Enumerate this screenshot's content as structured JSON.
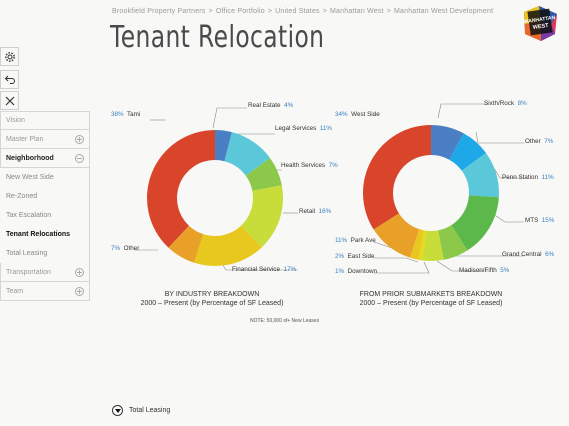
{
  "breadcrumb": [
    "Brookfield Property Partners",
    "Office Portfolio",
    "United States",
    "Manhattan West",
    "Manhattan West Development"
  ],
  "title": "Tenant Relocation",
  "logo_text": "MANHATTAN WEST",
  "toolbar": [
    "gear-icon",
    "back-arrow-icon",
    "close-icon"
  ],
  "menu": {
    "items_top": [
      {
        "label": "Vision",
        "icon": "none"
      },
      {
        "label": "Master Plan",
        "icon": "plus"
      },
      {
        "label": "Neighborhood",
        "icon": "minus",
        "active": true
      }
    ],
    "subitems": [
      {
        "label": "New West Side"
      },
      {
        "label": "Re-Zoned"
      },
      {
        "label": "Tax Escalation"
      },
      {
        "label": "Tenant Relocations",
        "active": true
      },
      {
        "label": "Total Leasing"
      }
    ],
    "items_bottom": [
      {
        "label": "Transportation",
        "icon": "plus"
      },
      {
        "label": "Team",
        "icon": "plus"
      }
    ]
  },
  "chart_data": [
    {
      "type": "pie",
      "donut": true,
      "categories": [
        "Real Estate",
        "Legal Services",
        "Health Services",
        "Retail",
        "Financial Service",
        "Other",
        "Tami"
      ],
      "values": [
        4,
        11,
        7,
        16,
        17,
        7,
        38
      ],
      "colors": [
        "#4a7fc4",
        "#5ac8d8",
        "#8cc84a",
        "#c8dc3a",
        "#e8c81e",
        "#e8a028",
        "#d8452a"
      ],
      "title": "BY INDUSTRY BREAKDOWN",
      "subtitle": "2000 – Present (by Percentage of SF Leased)"
    },
    {
      "type": "pie",
      "donut": true,
      "categories": [
        "Sixth/Rock",
        "Other",
        "Penn Station",
        "MTS",
        "Grand Central",
        "Madison/Fifth",
        "Downtown",
        "East Side",
        "Park Ave",
        "West Side"
      ],
      "values": [
        8,
        7,
        11,
        15,
        6,
        5,
        1,
        2,
        11,
        34
      ],
      "colors": [
        "#4a7fc4",
        "#1ea8e8",
        "#5ac8d8",
        "#5cb84a",
        "#8cc84a",
        "#c8dc3a",
        "#e8d81e",
        "#e8c81e",
        "#e8a028",
        "#d8452a"
      ],
      "title": "FROM PRIOR SUBMARKETS BREAKDOWN",
      "subtitle": "2000 – Present (by Percentage of SF Leased)"
    }
  ],
  "note": "NOTE: 50,000 sf+ New Leases",
  "footer": {
    "label": "Total Leasing",
    "icon": "down-arrow-icon"
  }
}
